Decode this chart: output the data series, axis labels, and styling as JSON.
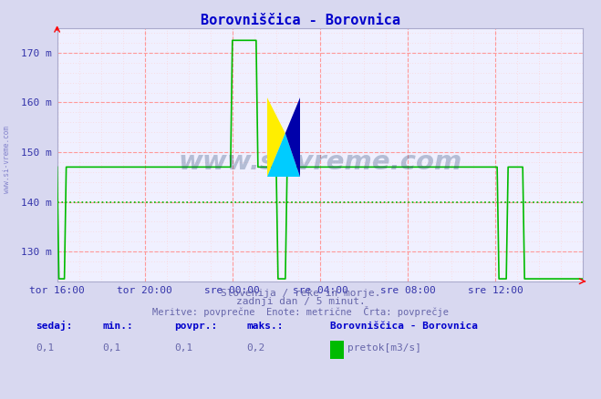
{
  "title": "Borovniščica - Borovnica",
  "title_color": "#0000cc",
  "bg_color": "#d8d8f0",
  "plot_bg_color": "#f0f0ff",
  "grid_color_major": "#ff9999",
  "grid_color_minor": "#ffcccc",
  "line_color": "#00bb00",
  "avg_line_color": "#00bb00",
  "avg_value": 140,
  "ylim_min": 124,
  "ylim_max": 175,
  "yticks": [
    130,
    140,
    150,
    160,
    170
  ],
  "ytick_labels": [
    "130 m",
    "140 m",
    "150 m",
    "160 m",
    "170 m"
  ],
  "xtick_labels": [
    "tor 16:00",
    "tor 20:00",
    "sre 00:00",
    "sre 04:00",
    "sre 08:00",
    "sre 12:00"
  ],
  "xtick_positions": [
    0,
    240,
    480,
    720,
    960,
    1200
  ],
  "total_minutes": 1440,
  "footer_line1": "Slovenija / reke in morje.",
  "footer_line2": "zadnji dan / 5 minut.",
  "footer_line3": "Meritve: povprečne  Enote: metrične  Črta: povprečje",
  "footer_color": "#6666aa",
  "stats_labels": [
    "sedaj:",
    "min.:",
    "povpr.:",
    "maks.:"
  ],
  "stats_values": [
    "0,1",
    "0,1",
    "0,1",
    "0,2"
  ],
  "legend_title": "Borovniščica - Borovnica",
  "legend_item": "pretok[m3/s]",
  "legend_color": "#00bb00",
  "watermark": "www.si-vreme.com",
  "watermark_color": "#1a3a6a",
  "watermark_alpha": 0.28,
  "axis_color": "#aaaacc",
  "tick_color": "#3333aa",
  "base_level": 147.0,
  "spike_high": 172.5,
  "low_level": 124.5
}
